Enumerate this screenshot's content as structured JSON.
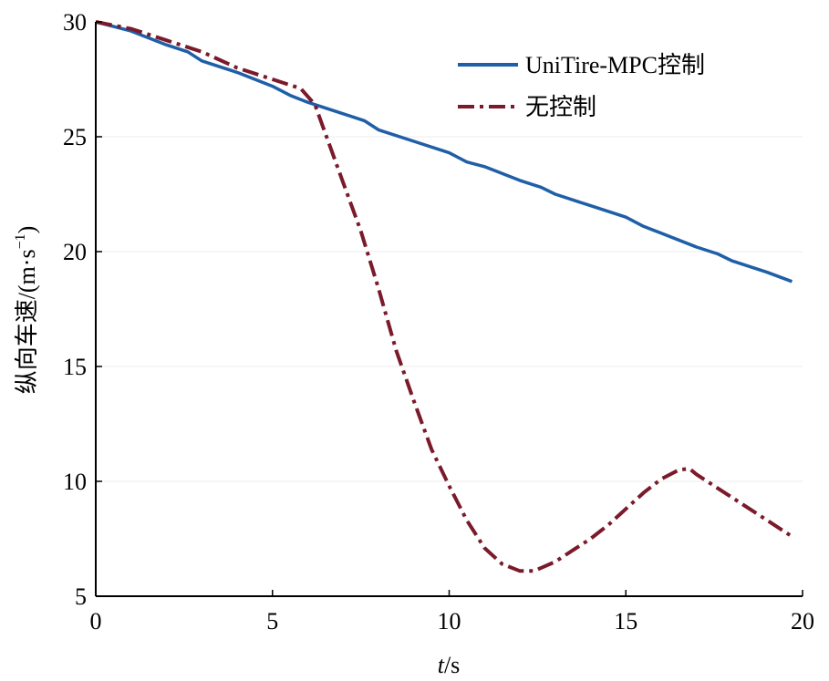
{
  "chart_data": {
    "type": "line",
    "xlabel_italic": "t",
    "xlabel_rest": "/s",
    "ylabel_main": "纵向车速/(m·s",
    "ylabel_sup": "−1",
    "ylabel_close": ")",
    "xlim": [
      0,
      20
    ],
    "ylim": [
      5,
      30
    ],
    "x_ticks": [
      0,
      5,
      10,
      15,
      20
    ],
    "y_ticks": [
      5,
      10,
      15,
      20,
      25,
      30
    ],
    "x_tick_labels": [
      "0",
      "5",
      "10",
      "15",
      "20"
    ],
    "y_tick_labels": [
      "5",
      "10",
      "15",
      "20",
      "25",
      "30"
    ],
    "grid": true,
    "legend_position": "top-right",
    "series": [
      {
        "name": "UniTire-MPC控制",
        "color": "#1f5fa8",
        "style": "solid",
        "x": [
          0,
          1,
          2,
          2.6,
          3,
          4,
          5,
          5.5,
          6,
          7,
          7.6,
          8,
          9,
          10,
          10.5,
          11,
          12,
          12.6,
          13,
          14,
          15,
          15.5,
          16,
          17,
          17.6,
          18,
          19,
          19.7
        ],
        "y": [
          30.0,
          29.6,
          29.0,
          28.7,
          28.3,
          27.8,
          27.2,
          26.8,
          26.5,
          26.0,
          25.7,
          25.3,
          24.8,
          24.3,
          23.9,
          23.7,
          23.1,
          22.8,
          22.5,
          22.0,
          21.5,
          21.1,
          20.8,
          20.2,
          19.9,
          19.6,
          19.1,
          18.7
        ]
      },
      {
        "name": "无控制",
        "color": "#7a1a2a",
        "style": "dashdot",
        "x": [
          0,
          1,
          2,
          3,
          4,
          5,
          5.8,
          6.2,
          6.6,
          7.0,
          7.5,
          8.0,
          8.5,
          9.0,
          9.5,
          10.0,
          10.5,
          11.0,
          11.5,
          12.0,
          12.4,
          13.0,
          13.5,
          14.0,
          14.5,
          15.0,
          15.5,
          16.0,
          16.5,
          16.8,
          17.0,
          17.5,
          18.0,
          18.5,
          19.0,
          19.7
        ],
        "y": [
          30.0,
          29.7,
          29.2,
          28.7,
          28.0,
          27.5,
          27.1,
          26.4,
          24.7,
          23.0,
          20.9,
          18.4,
          15.7,
          13.5,
          11.4,
          9.8,
          8.3,
          7.1,
          6.4,
          6.1,
          6.1,
          6.5,
          7.0,
          7.5,
          8.1,
          8.8,
          9.5,
          10.1,
          10.5,
          10.55,
          10.3,
          9.8,
          9.3,
          8.8,
          8.3,
          7.6
        ]
      }
    ]
  }
}
